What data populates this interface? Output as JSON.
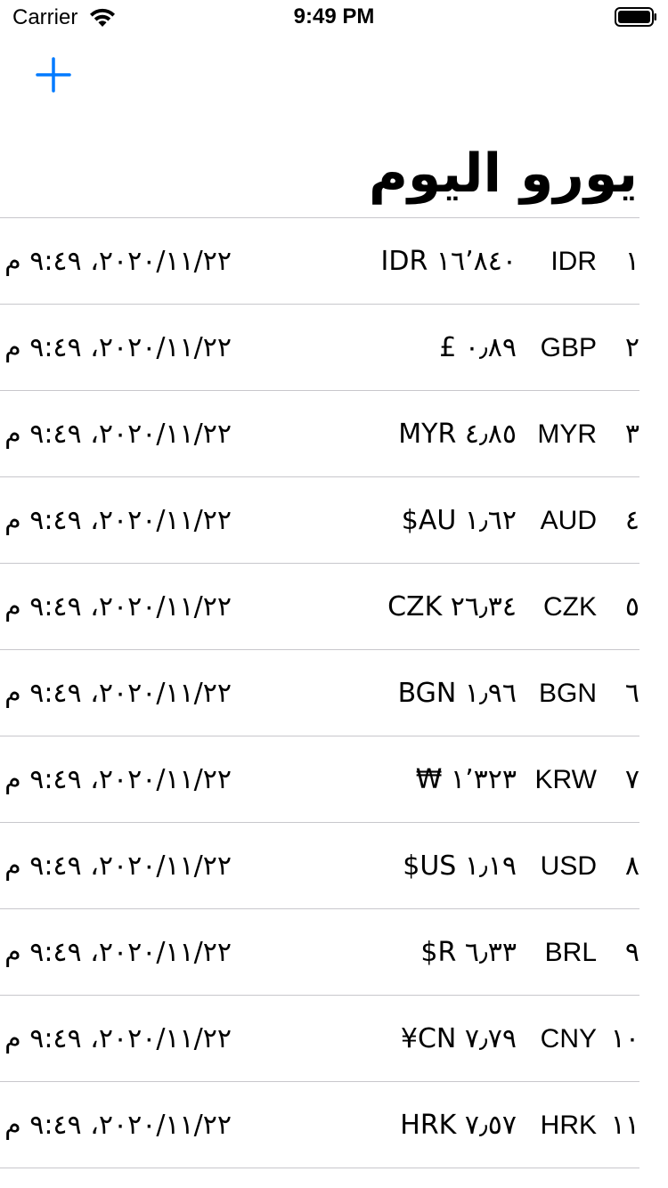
{
  "status_bar": {
    "carrier": "Carrier",
    "time": "9:49 PM"
  },
  "header": {
    "add_icon": "plus-icon",
    "title": "يورو اليوم"
  },
  "colors": {
    "accent": "#007aff",
    "separator": "#c8c7cc"
  },
  "rows": [
    {
      "index": "١",
      "code": "IDR",
      "rate": "١٦٬٨٤٠ IDR",
      "date": "٢٠٢٠/١١/٢٢، ٩:٤٩ م"
    },
    {
      "index": "٢",
      "code": "GBP",
      "rate": "٠٫٨٩ £",
      "date": "٢٠٢٠/١١/٢٢، ٩:٤٩ م"
    },
    {
      "index": "٣",
      "code": "MYR",
      "rate": "٤٫٨٥ MYR",
      "date": "٢٠٢٠/١١/٢٢، ٩:٤٩ م"
    },
    {
      "index": "٤",
      "code": "AUD",
      "rate": "١٫٦٢ AU$",
      "date": "٢٠٢٠/١١/٢٢، ٩:٤٩ م"
    },
    {
      "index": "٥",
      "code": "CZK",
      "rate": "٢٦٫٣٤ CZK",
      "date": "٢٠٢٠/١١/٢٢، ٩:٤٩ م"
    },
    {
      "index": "٦",
      "code": "BGN",
      "rate": "١٫٩٦ BGN",
      "date": "٢٠٢٠/١١/٢٢، ٩:٤٩ م"
    },
    {
      "index": "٧",
      "code": "KRW",
      "rate": "١٬٣٢٣ ₩",
      "date": "٢٠٢٠/١١/٢٢، ٩:٤٩ م"
    },
    {
      "index": "٨",
      "code": "USD",
      "rate": "١٫١٩ US$",
      "date": "٢٠٢٠/١١/٢٢، ٩:٤٩ م"
    },
    {
      "index": "٩",
      "code": "BRL",
      "rate": "٦٫٣٣ R$",
      "date": "٢٠٢٠/١١/٢٢، ٩:٤٩ م"
    },
    {
      "index": "١٠",
      "code": "CNY",
      "rate": "٧٫٧٩ CN¥",
      "date": "٢٠٢٠/١١/٢٢، ٩:٤٩ م"
    },
    {
      "index": "١١",
      "code": "HRK",
      "rate": "٧٫٥٧ HRK",
      "date": "٢٠٢٠/١١/٢٢، ٩:٤٩ م"
    }
  ]
}
